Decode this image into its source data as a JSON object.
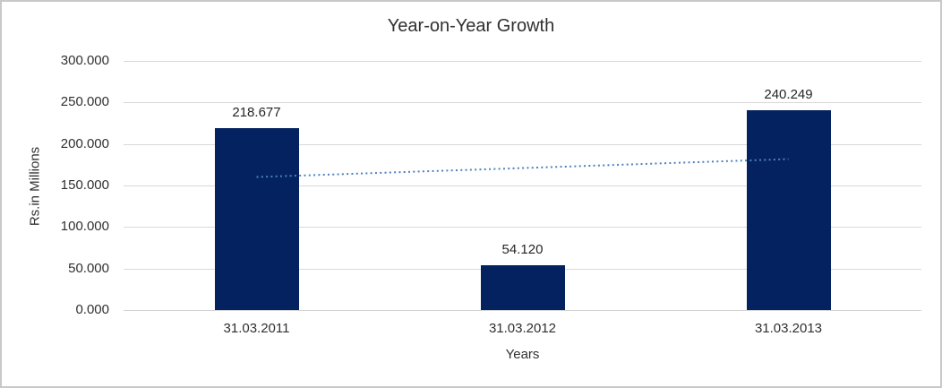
{
  "chart_data": {
    "type": "bar",
    "title": "Year-on-Year Growth",
    "xlabel": "Years",
    "ylabel": "Rs.in Millions",
    "categories": [
      "31.03.2011",
      "31.03.2012",
      "31.03.2013"
    ],
    "values": [
      218.677,
      54.12,
      240.249
    ],
    "data_labels": [
      "218.677",
      "54.120",
      "240.249"
    ],
    "ylim": [
      0,
      300
    ],
    "ytick_step": 50,
    "ytick_labels": [
      "0.000",
      "50.000",
      "100.000",
      "150.000",
      "200.000",
      "250.000",
      "300.000"
    ],
    "grid": true,
    "legend_position": "none",
    "trendline": {
      "type": "linear",
      "style": "dotted",
      "start_value": 160.2,
      "end_value": 181.8
    }
  },
  "colors": {
    "bar": "#052260",
    "trendline": "#4f81bd",
    "gridline": "#d9d9d9",
    "axis_line": "#d3d3d3",
    "text": "#303030",
    "background": "#ffffff",
    "frame_border": "#c9c9c9"
  }
}
